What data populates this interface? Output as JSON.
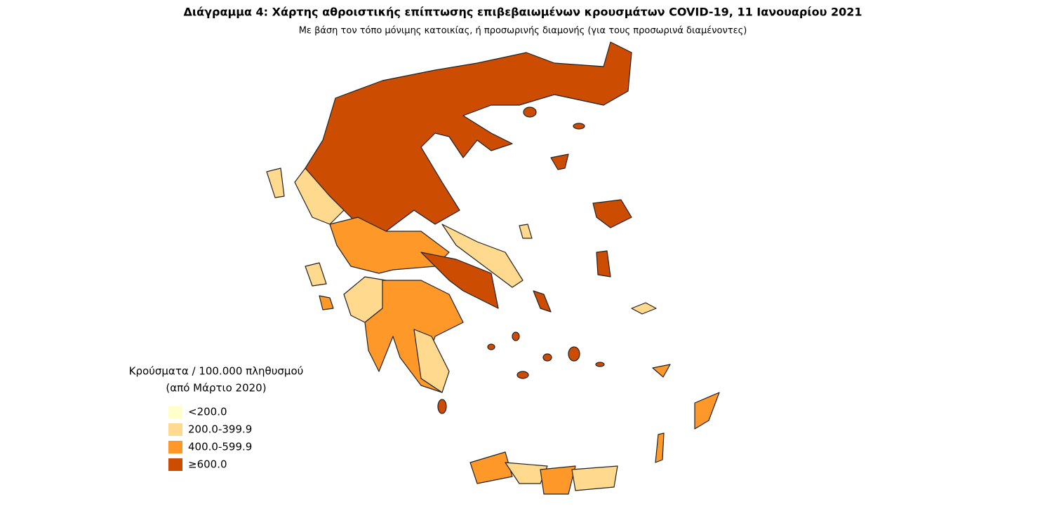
{
  "header": {
    "title": "Διάγραμμα 4: Χάρτης αθροιστικής επίπτωσης επιβεβαιωμένων κρουσμάτων COVID-19, 11 Ιανουαρίου 2021",
    "subtitle": "Με βάση τον τόπο μόνιμης κατοικίας, ή προσωρινής διαμονής (για τους προσωρινά διαμένοντες)"
  },
  "legend": {
    "title": [
      "Κρούσματα / 100.000 πληθυσμού",
      "(από Μάρτιο 2020)"
    ],
    "items": [
      {
        "label": "<200.0",
        "color": "#ffffcc"
      },
      {
        "label": "200.0-399.9",
        "color": "#fed98e"
      },
      {
        "label": "400.0-599.9",
        "color": "#fe9929"
      },
      {
        "label": "≥600.0",
        "color": "#cc4c02"
      }
    ]
  }
}
